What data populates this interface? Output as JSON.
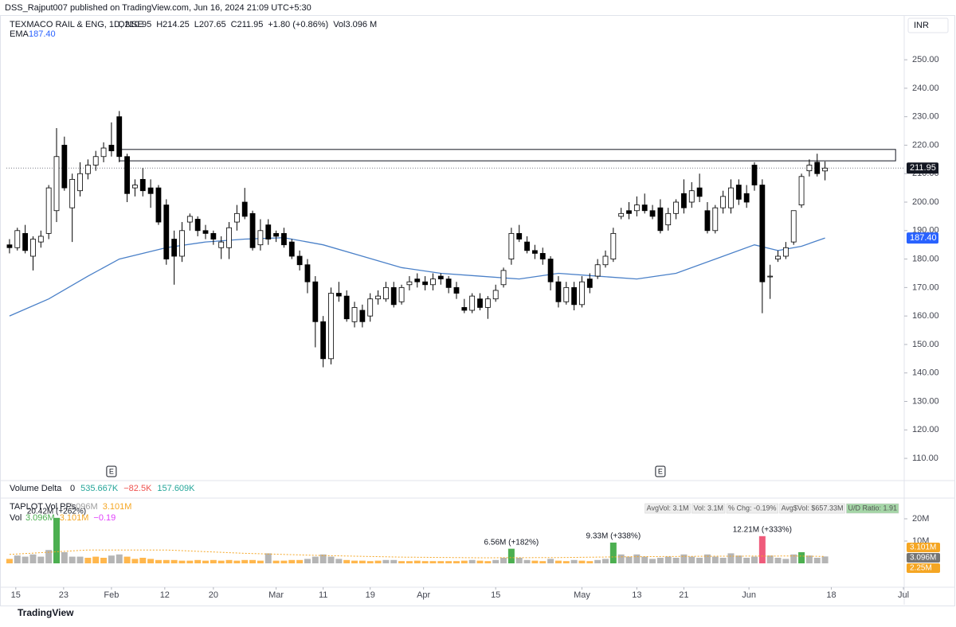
{
  "chart_data": {
    "type": "candlestick",
    "publisher": "DSS_Rajput007 published on TradingView.com, Jun 16, 2024 21:09 UTC+5:30",
    "symbol": "TEXMACO RAIL & ENG, 1D, NSE",
    "legend_values": [
      "O210.95",
      "H214.25",
      "L207.65",
      "C211.95",
      "+1.80 (+0.86%)",
      "Vol3.096 M"
    ],
    "currency": "INR",
    "ema": {
      "name": "EMA",
      "last": "187.40",
      "color": "#4a80c8",
      "x": [
        0,
        5,
        10,
        14,
        20,
        25,
        30,
        35,
        40,
        45,
        50,
        55,
        60,
        65,
        70,
        75,
        80,
        85,
        90,
        95,
        98,
        101,
        104
      ],
      "values": [
        160,
        166,
        174,
        180,
        184,
        186,
        187,
        187.5,
        185,
        181,
        177,
        175,
        174,
        173,
        175,
        174,
        173,
        175,
        180,
        185,
        183,
        184.5,
        187.4
      ]
    },
    "up_color": "#ffffff",
    "down_color": "#000000",
    "ohlc": [
      [
        185,
        187,
        182,
        184
      ],
      [
        184,
        191,
        183,
        190
      ],
      [
        189,
        192,
        182,
        183
      ],
      [
        181,
        188,
        176,
        187
      ],
      [
        186,
        190,
        184,
        188
      ],
      [
        189,
        206,
        187,
        205
      ],
      [
        197,
        226,
        193,
        216
      ],
      [
        220,
        223,
        204,
        205
      ],
      [
        198,
        210,
        186,
        208
      ],
      [
        204,
        214,
        202,
        210
      ],
      [
        210,
        215,
        208,
        213
      ],
      [
        213,
        218,
        211,
        216
      ],
      [
        216,
        221,
        214,
        219
      ],
      [
        220,
        228,
        216,
        218
      ],
      [
        230,
        232,
        214,
        216
      ],
      [
        216,
        217,
        200,
        203
      ],
      [
        205,
        208,
        202,
        206
      ],
      [
        208,
        212,
        202,
        204
      ],
      [
        205,
        208,
        198,
        203
      ],
      [
        205,
        206,
        192,
        193
      ],
      [
        199,
        201,
        178,
        180
      ],
      [
        187,
        190,
        171,
        181
      ],
      [
        181,
        193,
        179,
        190
      ],
      [
        193,
        196,
        190,
        195
      ],
      [
        194,
        195,
        188,
        190
      ],
      [
        190,
        192,
        187,
        189
      ],
      [
        189,
        190,
        185,
        187
      ],
      [
        184,
        188,
        180,
        186
      ],
      [
        184,
        193,
        180,
        191
      ],
      [
        193,
        199,
        190,
        196
      ],
      [
        200,
        205,
        194,
        195
      ],
      [
        196,
        197,
        183,
        184
      ],
      [
        185,
        194,
        183,
        190
      ],
      [
        192,
        194,
        185,
        187
      ],
      [
        189,
        190,
        186,
        188
      ],
      [
        189,
        191,
        184,
        185
      ],
      [
        186,
        187,
        180,
        181
      ],
      [
        181,
        183,
        176,
        178
      ],
      [
        178,
        180,
        168,
        172
      ],
      [
        172,
        174,
        149,
        158
      ],
      [
        158,
        160,
        142,
        145
      ],
      [
        145,
        170,
        143,
        168
      ],
      [
        168,
        172,
        165,
        167
      ],
      [
        167,
        169,
        158,
        159
      ],
      [
        158,
        165,
        156,
        163
      ],
      [
        162,
        164,
        156,
        158
      ],
      [
        160,
        168,
        158,
        166
      ],
      [
        166,
        169,
        164,
        167
      ],
      [
        166,
        172,
        165,
        170
      ],
      [
        170,
        172,
        163,
        164
      ],
      [
        165,
        171,
        164,
        170
      ],
      [
        171,
        174,
        169,
        172
      ],
      [
        173,
        175,
        170,
        172
      ],
      [
        172,
        174,
        169,
        171
      ],
      [
        171,
        175,
        169,
        173
      ],
      [
        174,
        175,
        171,
        173
      ],
      [
        173,
        174,
        168,
        170
      ],
      [
        170,
        172,
        166,
        168
      ],
      [
        163,
        166,
        161,
        162
      ],
      [
        162,
        168,
        161,
        167
      ],
      [
        166,
        168,
        162,
        163
      ],
      [
        163,
        167,
        159,
        166
      ],
      [
        166,
        171,
        165,
        169
      ],
      [
        171,
        177,
        170,
        176
      ],
      [
        180,
        191,
        178,
        189
      ],
      [
        189,
        192,
        186,
        187
      ],
      [
        186,
        188,
        182,
        183
      ],
      [
        183,
        185,
        180,
        182
      ],
      [
        182,
        184,
        178,
        180
      ],
      [
        180,
        181,
        169,
        172
      ],
      [
        172,
        174,
        163,
        165
      ],
      [
        165,
        172,
        164,
        170
      ],
      [
        170,
        172,
        162,
        164
      ],
      [
        164,
        174,
        163,
        172
      ],
      [
        173,
        175,
        168,
        170
      ],
      [
        174,
        180,
        173,
        178
      ],
      [
        178,
        183,
        177,
        181
      ],
      [
        180,
        191,
        179,
        189
      ],
      [
        195,
        198,
        194,
        196
      ],
      [
        197,
        200,
        194,
        196
      ],
      [
        197,
        202,
        195,
        199
      ],
      [
        199,
        203,
        196,
        197
      ],
      [
        197,
        199,
        194,
        195
      ],
      [
        198,
        201,
        189,
        190
      ],
      [
        192,
        198,
        190,
        196
      ],
      [
        196,
        201,
        194,
        200
      ],
      [
        203,
        208,
        196,
        198
      ],
      [
        200,
        207,
        198,
        204
      ],
      [
        205,
        210,
        200,
        202
      ],
      [
        197,
        200,
        189,
        190
      ],
      [
        190,
        199,
        189,
        198
      ],
      [
        198,
        204,
        196,
        202
      ],
      [
        198,
        208,
        196,
        205
      ],
      [
        206,
        208,
        199,
        201
      ],
      [
        203,
        206,
        198,
        200
      ],
      [
        213,
        214,
        204,
        206
      ],
      [
        206,
        208,
        161,
        172
      ],
      [
        174,
        178,
        166,
        174
      ],
      [
        180,
        183,
        179,
        181
      ],
      [
        181,
        186,
        180,
        184
      ],
      [
        186,
        197,
        185,
        197
      ],
      [
        199,
        210,
        198,
        209
      ],
      [
        211,
        215,
        209,
        213
      ],
      [
        214,
        217,
        209,
        210
      ],
      [
        210.95,
        214.25,
        207.65,
        211.95
      ]
    ],
    "ylim": [
      102.75,
      265.4
    ],
    "yticks": [
      {
        "value": 110,
        "label": "110.00"
      },
      {
        "value": 120,
        "label": "120.00"
      },
      {
        "value": 130,
        "label": "130.00"
      },
      {
        "value": 140,
        "label": "140.00"
      },
      {
        "value": 150,
        "label": "150.00"
      },
      {
        "value": 160,
        "label": "160.00"
      },
      {
        "value": 170,
        "label": "170.00"
      },
      {
        "value": 180,
        "label": "180.00"
      },
      {
        "value": 190,
        "label": "190.00"
      },
      {
        "value": 200,
        "label": "200.00"
      },
      {
        "value": 210,
        "label": "210.00"
      },
      {
        "value": 220,
        "label": "220.00"
      },
      {
        "value": 230,
        "label": "230.00"
      },
      {
        "value": 240,
        "label": "240.00"
      },
      {
        "value": 250,
        "label": "250.00"
      }
    ],
    "xlim": [
      -0.4,
      114.1
    ],
    "xticks": [
      {
        "value": 0.8,
        "label": "15"
      },
      {
        "value": 6.9,
        "label": "23"
      },
      {
        "value": 13,
        "label": "Feb"
      },
      {
        "value": 19.8,
        "label": "12"
      },
      {
        "value": 26,
        "label": "20"
      },
      {
        "value": 34,
        "label": "Mar"
      },
      {
        "value": 40,
        "label": "11"
      },
      {
        "value": 46,
        "label": "19"
      },
      {
        "value": 52.8,
        "label": "Apr"
      },
      {
        "value": 62,
        "label": "15"
      },
      {
        "value": 73,
        "label": "May"
      },
      {
        "value": 80,
        "label": "13"
      },
      {
        "value": 86,
        "label": "21"
      },
      {
        "value": 94.3,
        "label": "Jun"
      },
      {
        "value": 104.8,
        "label": "18"
      },
      {
        "value": 114,
        "label": "Jul"
      }
    ],
    "zone": {
      "low": 214.5,
      "high": 218.5,
      "from": 14,
      "to": 113
    },
    "events": [
      {
        "x": 13,
        "label": "E"
      },
      {
        "x": 83,
        "label": "E"
      }
    ],
    "volume_delta": {
      "name": "Volume Delta",
      "values": [
        "0",
        "535.667K",
        "−82.5K",
        "157.609K"
      ]
    },
    "taplot": {
      "name": "TAPLOT Vol PPs",
      "values": [
        "3.096M",
        "3.101M"
      ],
      "vol_label": "Vol",
      "vol_values": [
        "3.096M",
        "3.101M",
        "−0.19"
      ],
      "stats": [
        "AvgVol: 3.1M",
        "Vol: 3.1M",
        "% Chg: -0.19%",
        "Avg$Vol: $657.33M",
        "U/D Ratio: 1.91"
      ],
      "tags": [
        "3.101M",
        "3.096M",
        "2.25M"
      ]
    },
    "volume": {
      "values": [
        2,
        3.5,
        3,
        4,
        3,
        6,
        20.42,
        5,
        3,
        3,
        2.5,
        3,
        2.5,
        3.5,
        4,
        3,
        2,
        2.5,
        2,
        1.5,
        1.5,
        1.5,
        1.2,
        1.2,
        1.5,
        1.2,
        1.5,
        1.2,
        1.5,
        1.2,
        1.5,
        1.5,
        1.2,
        4.5,
        1.2,
        1.2,
        1.5,
        1.5,
        2,
        3,
        4,
        3,
        2,
        1.5,
        1.2,
        1.2,
        1,
        1.2,
        1.5,
        1.5,
        1,
        1,
        1.2,
        1,
        1,
        1,
        1,
        1,
        1.2,
        1.5,
        1.2,
        1,
        1.5,
        2.5,
        6.56,
        2.5,
        1.5,
        1.2,
        1,
        2,
        1.2,
        1,
        1.5,
        1.2,
        1,
        1.5,
        2,
        9.33,
        4,
        3,
        4,
        3,
        2,
        2.5,
        3,
        2.5,
        4,
        3,
        2.5,
        4,
        3,
        2.5,
        4.5,
        3.5,
        2.5,
        3,
        12.21,
        3.5,
        2.5,
        2,
        4,
        5,
        3.5,
        2.5,
        3.096
      ],
      "avg": {
        "x": [
          0,
          10,
          20,
          30,
          40,
          50,
          60,
          70,
          80,
          90,
          100,
          104
        ],
        "values": [
          4,
          6,
          6,
          4.5,
          3.5,
          2.8,
          2.5,
          2.6,
          3,
          3.2,
          3.3,
          3.1
        ],
        "color": "#f5a623"
      },
      "ylim": [
        0,
        28
      ],
      "yticks": [
        {
          "value": 10,
          "label": "10M"
        },
        {
          "value": 20,
          "label": "20M"
        }
      ],
      "colors": {
        "up": "#4caf50",
        "down": "#ef5b7b",
        "normal": "#b5b5b5",
        "low": "#ffb74d"
      },
      "annotations": [
        {
          "x": 6,
          "value": 20.42,
          "label": "20.42M (+262%)"
        },
        {
          "x": 64,
          "value": 6.56,
          "label": "6.56M (+182%)"
        },
        {
          "x": 77,
          "value": 9.33,
          "label": "9.33M (+338%)"
        },
        {
          "x": 96,
          "value": 12.21,
          "label": "12.21M (+333%)"
        }
      ]
    },
    "brand": "TradingView"
  }
}
